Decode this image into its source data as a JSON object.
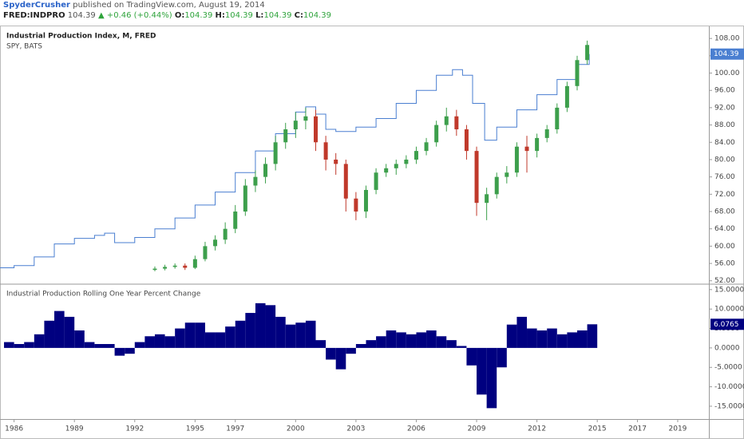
{
  "header": {
    "author": "SpyderCrusher",
    "published": "published on TradingView.com, August 19, 2014",
    "symbol": "FRED:INDPRO",
    "price": "104.39",
    "change": "▲ +0.46 (+0.44%)",
    "o_label": "O:",
    "o": "104.39",
    "h_label": "H:",
    "h": "104.39",
    "l_label": "L:",
    "l": "104.39",
    "c_label": "C:",
    "c": "104.39"
  },
  "chart_data": [
    {
      "type": "candlestick",
      "title": "Industrial Production Index, M, FRED",
      "subtitle": "SPY, BATS",
      "xlim": [
        1985.3,
        2020.55
      ],
      "ylim": [
        51.4,
        110.8
      ],
      "yticks": [
        {
          "value": 52,
          "label": "52.00"
        },
        {
          "value": 56,
          "label": "56.00"
        },
        {
          "value": 60,
          "label": "60.00"
        },
        {
          "value": 64,
          "label": "64.00"
        },
        {
          "value": 68,
          "label": "68.00"
        },
        {
          "value": 72,
          "label": "72.00"
        },
        {
          "value": 76,
          "label": "76.00"
        },
        {
          "value": 80,
          "label": "80.00"
        },
        {
          "value": 84,
          "label": "84.00"
        },
        {
          "value": 88,
          "label": "88.00"
        },
        {
          "value": 92,
          "label": "92.00"
        },
        {
          "value": 96,
          "label": "96.00"
        },
        {
          "value": 100,
          "label": "100.00"
        },
        {
          "value": 104,
          "label": "104.00"
        },
        {
          "value": 108,
          "label": "108.00"
        }
      ],
      "line": {
        "color": "#4a7fd1",
        "step": true,
        "x": [
          1985.3,
          1986,
          1987,
          1988,
          1989,
          1990,
          1990.5,
          1991,
          1992,
          1993,
          1994,
          1995,
          1996,
          1997,
          1998,
          1999,
          2000,
          2000.5,
          2001,
          2001.5,
          2002,
          2003,
          2004,
          2005,
          2006,
          2007,
          2007.8,
          2008.3,
          2008.8,
          2009.4,
          2010,
          2011,
          2012,
          2013,
          2014,
          2014.6
        ],
        "values": [
          55.0,
          55.5,
          57.5,
          60.5,
          61.8,
          62.5,
          63.0,
          60.8,
          62.0,
          64.0,
          66.5,
          69.5,
          72.5,
          77.0,
          82.0,
          86.0,
          91.0,
          92.2,
          90.5,
          87.0,
          86.5,
          87.5,
          89.5,
          93.0,
          96.0,
          99.5,
          100.8,
          99.5,
          93.0,
          84.5,
          87.5,
          91.5,
          95.0,
          98.5,
          102.0,
          104.39
        ]
      },
      "candles": {
        "up_color": "#3d9f4c",
        "down_color": "#c0392b",
        "x": [
          1993,
          1993.5,
          1994,
          1994.5,
          1995,
          1995.5,
          1996,
          1996.5,
          1997,
          1997.5,
          1998,
          1998.5,
          1999,
          1999.5,
          2000,
          2000.5,
          2001,
          2001.5,
          2002,
          2002.5,
          2003,
          2003.5,
          2004,
          2004.5,
          2005,
          2005.5,
          2006,
          2006.5,
          2007,
          2007.5,
          2008,
          2008.5,
          2009,
          2009.5,
          2010,
          2010.5,
          2011,
          2011.5,
          2012,
          2012.5,
          2013,
          2013.5,
          2014,
          2014.5
        ],
        "open": [
          54.5,
          54.8,
          55.2,
          55.5,
          55.0,
          57.0,
          60.0,
          61.5,
          64.0,
          68.0,
          74.0,
          76.0,
          79.0,
          84.0,
          87.0,
          89.0,
          90.0,
          84.0,
          80.0,
          79.0,
          71.0,
          68.0,
          73.0,
          77.0,
          78.0,
          79.0,
          80.0,
          82.0,
          84.0,
          88.0,
          90.0,
          87.0,
          82.0,
          70.0,
          72.0,
          76.0,
          77.0,
          83.0,
          82.0,
          85.0,
          87.0,
          92.0,
          97.0,
          103.0
        ],
        "high": [
          55.3,
          55.7,
          56.0,
          56.0,
          57.8,
          61.0,
          62.5,
          65.5,
          69.5,
          75.5,
          77.5,
          80.5,
          85.5,
          88.5,
          91.0,
          92.0,
          91.5,
          85.5,
          81.5,
          80.0,
          72.5,
          74.0,
          78.0,
          79.0,
          80.0,
          81.0,
          83.0,
          85.0,
          89.0,
          92.0,
          91.5,
          88.0,
          83.0,
          73.5,
          77.0,
          78.5,
          84.0,
          85.5,
          86.0,
          88.0,
          93.0,
          98.0,
          104.0,
          107.5
        ],
        "low": [
          54.2,
          54.4,
          54.8,
          54.5,
          54.7,
          56.5,
          59.0,
          60.5,
          63.0,
          67.0,
          72.5,
          74.5,
          77.5,
          82.5,
          85.0,
          87.0,
          82.0,
          77.5,
          76.5,
          68.0,
          66.0,
          66.5,
          72.0,
          76.0,
          76.5,
          78.0,
          79.0,
          81.0,
          83.0,
          86.5,
          85.5,
          80.0,
          67.0,
          66.0,
          71.0,
          74.5,
          76.0,
          77.0,
          80.5,
          84.0,
          86.0,
          91.0,
          96.0,
          102.0
        ],
        "close": [
          54.8,
          55.2,
          55.5,
          55.0,
          57.0,
          60.0,
          61.5,
          64.0,
          68.0,
          74.0,
          76.0,
          79.0,
          84.0,
          87.0,
          89.0,
          90.0,
          84.0,
          80.0,
          79.0,
          71.0,
          68.0,
          73.0,
          77.0,
          78.0,
          79.0,
          80.0,
          82.0,
          84.0,
          88.0,
          90.0,
          87.0,
          82.0,
          70.0,
          72.0,
          76.0,
          77.0,
          83.0,
          82.0,
          85.0,
          87.0,
          92.0,
          97.0,
          103.0,
          106.5
        ]
      }
    },
    {
      "type": "bar",
      "title": "Industrial Production Rolling One Year Percent Change",
      "color": "#000080",
      "xlim": [
        1985.3,
        2020.55
      ],
      "ylim": [
        -18.3,
        16.2
      ],
      "yticks": [
        {
          "value": 15,
          "label": "15.0000"
        },
        {
          "value": 10,
          "label": "10.0000"
        },
        {
          "value": 5,
          "label": "5.0000"
        },
        {
          "value": 0,
          "label": "0.0000"
        },
        {
          "value": -5,
          "label": "-5.0000"
        },
        {
          "value": -10,
          "label": "-10.0000"
        },
        {
          "value": -15,
          "label": "-15.0000"
        }
      ],
      "xticks": [
        1986,
        1989,
        1992,
        1995,
        1997,
        2000,
        2003,
        2006,
        2009,
        2012,
        2015,
        2017,
        2019
      ],
      "x": [
        1985.5,
        1986,
        1986.5,
        1987,
        1987.5,
        1988,
        1988.5,
        1989,
        1989.5,
        1990,
        1990.5,
        1991,
        1991.5,
        1992,
        1992.5,
        1993,
        1993.5,
        1994,
        1994.5,
        1995,
        1995.5,
        1996,
        1996.5,
        1997,
        1997.5,
        1998,
        1998.5,
        1999,
        1999.5,
        2000,
        2000.5,
        2001,
        2001.5,
        2002,
        2002.5,
        2003,
        2003.5,
        2004,
        2004.5,
        2005,
        2005.5,
        2006,
        2006.5,
        2007,
        2007.5,
        2008,
        2008.5,
        2009,
        2009.5,
        2010,
        2010.5,
        2011,
        2011.5,
        2012,
        2012.5,
        2013,
        2013.5,
        2014,
        2014.5
      ],
      "values": [
        1.5,
        1.0,
        1.5,
        3.5,
        7.0,
        9.5,
        8.0,
        4.5,
        1.5,
        1.0,
        1.0,
        -2.0,
        -1.5,
        1.5,
        3.0,
        3.5,
        3.0,
        5.0,
        6.5,
        6.5,
        4.0,
        4.0,
        5.5,
        7.0,
        9.0,
        11.5,
        11.0,
        8.0,
        6.0,
        6.5,
        7.0,
        2.0,
        -3.0,
        -5.5,
        -1.5,
        1.0,
        2.0,
        3.0,
        4.5,
        4.0,
        3.5,
        4.0,
        4.5,
        3.0,
        2.0,
        0.5,
        -4.5,
        -12.0,
        -15.5,
        -5.0,
        6.0,
        8.0,
        5.0,
        4.5,
        5.0,
        3.5,
        4.0,
        4.5,
        6.0765
      ]
    }
  ]
}
